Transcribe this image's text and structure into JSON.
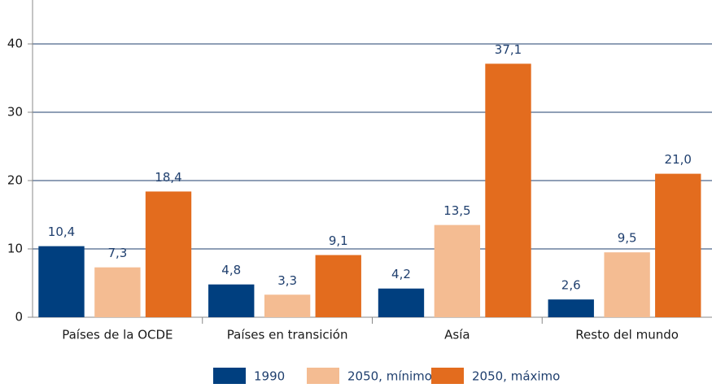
{
  "chart_data": {
    "type": "bar",
    "categories": [
      "Países de la OCDE",
      "Países en transición",
      "Asía",
      "Resto del mundo"
    ],
    "series": [
      {
        "name": "1990",
        "color": "#003f7f",
        "values": [
          10.4,
          4.8,
          4.2,
          2.6
        ],
        "value_labels": [
          "10,4",
          "4,8",
          "4,2",
          "2,6"
        ]
      },
      {
        "name": "2050, mínimo",
        "color": "#f4bc92",
        "values": [
          7.3,
          3.3,
          13.5,
          9.5
        ],
        "value_labels": [
          "7,3",
          "3,3",
          "13,5",
          "9,5"
        ]
      },
      {
        "name": "2050, máximo",
        "color": "#e36c1e",
        "values": [
          18.4,
          9.1,
          37.1,
          21.0
        ],
        "value_labels": [
          "18,4",
          "9,1",
          "37,1",
          "21,0"
        ]
      }
    ],
    "ylim": [
      0,
      45
    ],
    "yticks": [
      0,
      10,
      20,
      30,
      40
    ],
    "grid": true,
    "legend": "bottom"
  }
}
